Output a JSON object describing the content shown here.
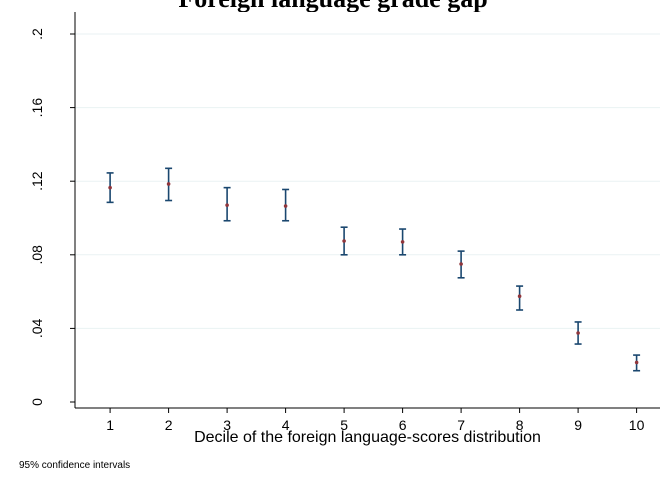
{
  "chart_data": {
    "type": "scatter",
    "title": "",
    "xlabel": "Decile of the foreign language-scores distribution",
    "ylabel": "",
    "note": "95% confidence intervals",
    "xlim": [
      0.4,
      10.4
    ],
    "ylim": [
      0,
      0.2
    ],
    "xticks": [
      1,
      2,
      3,
      4,
      5,
      6,
      7,
      8,
      9,
      10
    ],
    "yticks": [
      0,
      0.04,
      0.08,
      0.12,
      0.16,
      0.2
    ],
    "ytick_labels": [
      "0",
      ".04",
      ".08",
      ".12",
      ".16",
      ".2"
    ],
    "grid": true,
    "series": [
      {
        "x": [
          1,
          2,
          3,
          4,
          5,
          6,
          7,
          8,
          9,
          10
        ],
        "values": [
          0.1165,
          0.1185,
          0.107,
          0.1065,
          0.0875,
          0.087,
          0.075,
          0.0575,
          0.0375,
          0.0215
        ],
        "ci_low": [
          0.1085,
          0.1095,
          0.0985,
          0.0985,
          0.08,
          0.08,
          0.0675,
          0.05,
          0.0315,
          0.017
        ],
        "ci_high": [
          0.1245,
          0.127,
          0.1165,
          0.1155,
          0.095,
          0.094,
          0.082,
          0.063,
          0.0435,
          0.0255
        ]
      }
    ],
    "colors": {
      "axis": "#000000",
      "grid": "#eaf2f3",
      "ci": "#1a476f",
      "point": "#90353b"
    }
  },
  "partial_title": "Foreign language grade gap"
}
